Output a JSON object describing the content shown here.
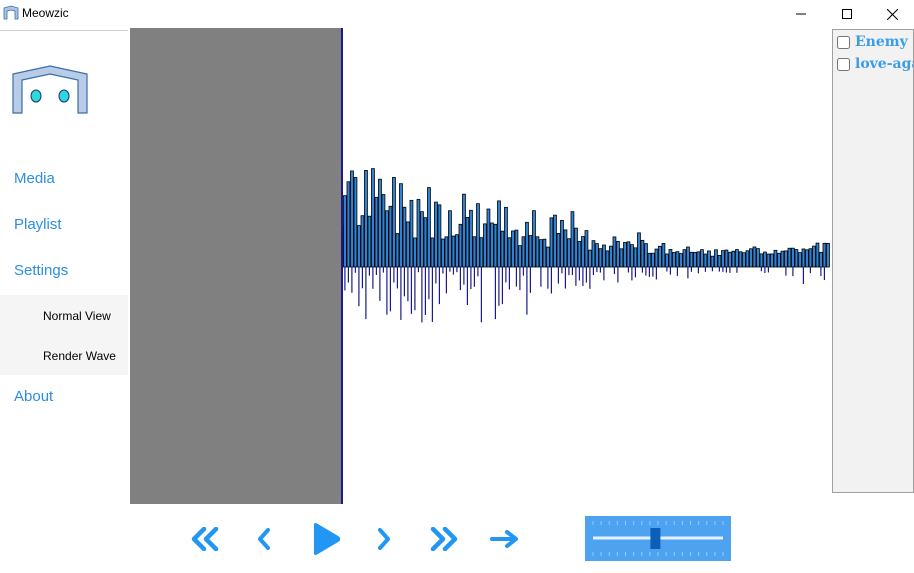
{
  "window": {
    "title": "Meowzic"
  },
  "sidebar": {
    "nav": [
      "Media",
      "Playlist",
      "Settings",
      "About"
    ],
    "settings_sub": [
      "Normal View",
      "Render Wave"
    ]
  },
  "playlist": [
    {
      "name": "Enemy",
      "checked": false
    },
    {
      "name": "love-aga",
      "checked": false
    }
  ],
  "playback": {
    "progress": 0.3
  },
  "volume": {
    "level": 0.48
  },
  "colors": {
    "accent": "#2b8ee0",
    "bar": "#2e83d6",
    "bar_top": "#000000",
    "bottom_bar": "#1a1a8c",
    "played_overlay": "#808080",
    "playhead": "#1a1a8c"
  },
  "icons": [
    "app-icon",
    "minimize-icon",
    "maximize-icon",
    "close-icon",
    "rewind-icon",
    "previous-icon",
    "play-icon",
    "next-icon",
    "fast-forward-icon",
    "repeat-icon"
  ]
}
